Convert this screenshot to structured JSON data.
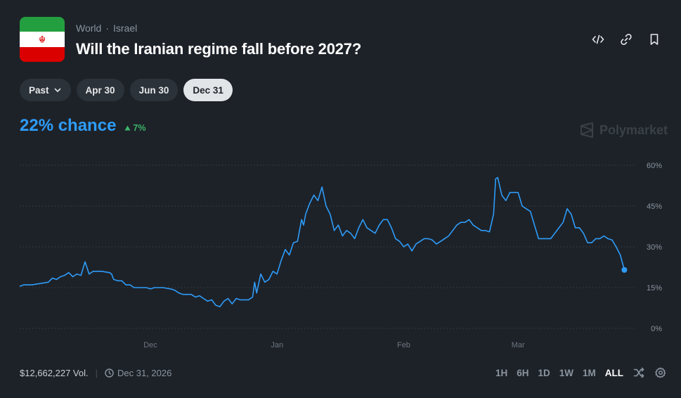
{
  "header": {
    "breadcrumb": [
      "World",
      "Israel"
    ],
    "breadcrumb_sep": "·",
    "title": "Will the Iranian regime fall before 2027?",
    "icons": [
      "embed-icon",
      "link-icon",
      "bookmark-icon"
    ],
    "flag_colors": [
      "#239f40",
      "#ffffff",
      "#da0000"
    ]
  },
  "date_pills": {
    "past_label": "Past",
    "items": [
      "Apr 30",
      "Jun 30",
      "Dec 31"
    ],
    "active": "Dec 31"
  },
  "summary": {
    "chance_text": "22% chance",
    "delta_text": "7%",
    "brand": "Polymarket"
  },
  "footer": {
    "volume": "$12,662,227 Vol.",
    "end_date": "Dec 31, 2026",
    "ranges": [
      "1H",
      "6H",
      "1D",
      "1W",
      "1M",
      "ALL"
    ],
    "active_range": "ALL"
  },
  "colors": {
    "line": "#2e9cf8",
    "up": "#3db468",
    "background": "#1d2229",
    "grid": "#3a4048"
  },
  "chart_data": {
    "type": "line",
    "y_tick_labels": [
      "60%",
      "45%",
      "30%",
      "15%",
      "0%"
    ],
    "y_ticks": [
      60,
      45,
      30,
      15,
      0
    ],
    "ylim": [
      0,
      60
    ],
    "x_tick_labels": [
      "Dec",
      "Jan",
      "Feb",
      "Mar"
    ],
    "x_ticks": [
      32,
      63,
      94,
      122
    ],
    "xlim": [
      0,
      150
    ],
    "grid": true,
    "series": [
      {
        "values": [
          [
            0,
            15.5
          ],
          [
            1,
            16
          ],
          [
            3,
            16
          ],
          [
            5,
            16.5
          ],
          [
            7,
            17
          ],
          [
            8,
            18.5
          ],
          [
            9,
            18
          ],
          [
            10,
            19
          ],
          [
            11,
            19.5
          ],
          [
            12,
            20.5
          ],
          [
            13,
            19
          ],
          [
            14,
            20
          ],
          [
            15,
            19.5
          ],
          [
            16,
            24.5
          ],
          [
            17,
            20
          ],
          [
            18,
            21
          ],
          [
            20,
            21
          ],
          [
            22,
            20.5
          ],
          [
            22.5,
            20
          ],
          [
            23,
            18
          ],
          [
            24,
            17.5
          ],
          [
            25,
            17.5
          ],
          [
            26,
            16
          ],
          [
            27,
            16
          ],
          [
            28,
            15
          ],
          [
            30,
            15
          ],
          [
            31,
            15
          ],
          [
            32,
            14.5
          ],
          [
            33,
            15
          ],
          [
            35,
            15
          ],
          [
            37,
            14.5
          ],
          [
            38,
            14
          ],
          [
            39,
            13
          ],
          [
            40,
            12.5
          ],
          [
            42,
            12.5
          ],
          [
            43,
            11.5
          ],
          [
            44,
            12
          ],
          [
            45,
            11
          ],
          [
            46,
            10
          ],
          [
            47,
            10.5
          ],
          [
            48,
            8.5
          ],
          [
            49,
            8
          ],
          [
            50,
            10
          ],
          [
            51,
            11
          ],
          [
            52,
            9
          ],
          [
            53,
            11
          ],
          [
            54,
            10.5
          ],
          [
            55,
            10.5
          ],
          [
            56,
            10.5
          ],
          [
            57,
            11.5
          ],
          [
            57.5,
            17
          ],
          [
            58,
            13
          ],
          [
            59,
            20
          ],
          [
            60,
            17
          ],
          [
            61,
            18
          ],
          [
            62,
            21
          ],
          [
            63,
            20
          ],
          [
            64,
            25
          ],
          [
            65,
            29
          ],
          [
            66,
            27
          ],
          [
            67,
            31.5
          ],
          [
            68,
            32
          ],
          [
            69,
            40
          ],
          [
            69.5,
            38
          ],
          [
            70,
            42
          ],
          [
            71,
            46
          ],
          [
            72,
            49
          ],
          [
            73,
            47
          ],
          [
            74,
            52
          ],
          [
            75,
            45
          ],
          [
            76,
            42
          ],
          [
            77,
            36
          ],
          [
            78,
            38
          ],
          [
            79,
            34
          ],
          [
            80,
            36
          ],
          [
            81,
            35
          ],
          [
            82,
            33
          ],
          [
            83,
            37
          ],
          [
            84,
            40
          ],
          [
            85,
            37
          ],
          [
            86,
            36
          ],
          [
            87,
            35
          ],
          [
            88,
            38
          ],
          [
            89,
            40
          ],
          [
            90,
            40
          ],
          [
            91,
            37
          ],
          [
            92,
            33
          ],
          [
            93,
            32
          ],
          [
            94,
            30
          ],
          [
            95,
            31
          ],
          [
            96,
            28.5
          ],
          [
            97,
            31
          ],
          [
            98,
            32
          ],
          [
            99,
            33
          ],
          [
            100,
            33
          ],
          [
            101,
            32.5
          ],
          [
            102,
            31
          ],
          [
            103,
            32
          ],
          [
            104,
            33
          ],
          [
            105,
            34
          ],
          [
            106,
            36
          ],
          [
            107,
            38
          ],
          [
            108,
            39
          ],
          [
            109,
            39
          ],
          [
            110,
            40
          ],
          [
            111,
            38
          ],
          [
            112,
            37
          ],
          [
            113,
            36
          ],
          [
            114,
            36
          ],
          [
            115,
            35.5
          ],
          [
            116,
            42
          ],
          [
            116.5,
            55
          ],
          [
            117,
            55.5
          ],
          [
            118,
            49
          ],
          [
            119,
            47
          ],
          [
            120,
            50
          ],
          [
            121,
            50
          ],
          [
            122,
            50
          ],
          [
            123,
            45
          ],
          [
            124,
            44
          ],
          [
            125,
            43
          ],
          [
            126,
            38
          ],
          [
            127,
            33
          ],
          [
            128,
            33
          ],
          [
            129,
            33
          ],
          [
            130,
            33
          ],
          [
            131,
            35
          ],
          [
            132,
            37
          ],
          [
            133,
            39
          ],
          [
            134,
            44
          ],
          [
            135,
            42
          ],
          [
            136,
            37
          ],
          [
            137,
            37
          ],
          [
            138,
            35
          ],
          [
            139,
            31.5
          ],
          [
            140,
            31.5
          ],
          [
            141,
            33
          ],
          [
            142,
            33
          ],
          [
            143,
            34
          ],
          [
            144,
            33
          ],
          [
            145,
            32.5
          ],
          [
            146,
            30
          ],
          [
            147,
            27
          ],
          [
            148,
            21.5
          ]
        ]
      }
    ]
  }
}
